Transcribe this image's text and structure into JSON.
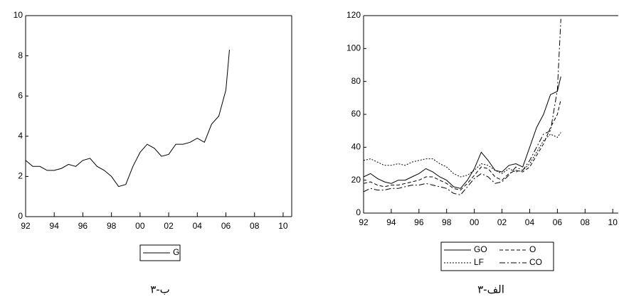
{
  "chart_data": [
    {
      "type": "line",
      "caption": "۳-ب",
      "legend": "bottom",
      "x": [
        1992,
        1992.5,
        1993,
        1993.5,
        1994,
        1994.5,
        1995,
        1995.5,
        1996,
        1996.5,
        1997,
        1997.5,
        1998,
        1998.5,
        1999,
        1999.5,
        2000,
        2000.5,
        2001,
        2001.5,
        2002,
        2002.5,
        2003,
        2003.5,
        2004,
        2004.5,
        2005,
        2005.5,
        2006,
        2006.25
      ],
      "series": [
        {
          "name": "G",
          "color": "#000000",
          "style": "solid",
          "values": [
            2.8,
            2.5,
            2.5,
            2.3,
            2.3,
            2.4,
            2.6,
            2.5,
            2.8,
            2.9,
            2.5,
            2.3,
            2.0,
            1.5,
            1.6,
            2.5,
            3.2,
            3.6,
            3.4,
            3.0,
            3.1,
            3.6,
            3.6,
            3.7,
            3.9,
            3.7,
            4.6,
            5.0,
            6.3,
            8.3
          ]
        }
      ],
      "xlim": [
        1992,
        2010.6
      ],
      "ylim": [
        0,
        10
      ],
      "yticks": [
        0,
        2,
        4,
        6,
        8,
        10
      ],
      "xticks": [
        {
          "value": 1992,
          "label": "92"
        },
        {
          "value": 1994,
          "label": "94"
        },
        {
          "value": 1996,
          "label": "96"
        },
        {
          "value": 1998,
          "label": "98"
        },
        {
          "value": 2000,
          "label": "00"
        },
        {
          "value": 2002,
          "label": "02"
        },
        {
          "value": 2004,
          "label": "04"
        },
        {
          "value": 2006,
          "label": "06"
        },
        {
          "value": 2008,
          "label": "08"
        },
        {
          "value": 2010,
          "label": "10"
        }
      ]
    },
    {
      "type": "line",
      "caption": "۳-الف",
      "legend": "bottom",
      "x": [
        1992,
        1992.5,
        1993,
        1993.5,
        1994,
        1994.5,
        1995,
        1995.5,
        1996,
        1996.5,
        1997,
        1997.5,
        1998,
        1998.5,
        1999,
        1999.5,
        2000,
        2000.5,
        2001,
        2001.5,
        2002,
        2002.5,
        2003,
        2003.5,
        2004,
        2004.5,
        2005,
        2005.5,
        2006,
        2006.25
      ],
      "series": [
        {
          "name": "GO",
          "color": "#000000",
          "style": "solid",
          "values": [
            22,
            24,
            21,
            19,
            18,
            20,
            20,
            22,
            24,
            27,
            25,
            22,
            20,
            16,
            15,
            20,
            27,
            37,
            32,
            26,
            25,
            29,
            30,
            28,
            40,
            52,
            60,
            72,
            74,
            83
          ]
        },
        {
          "name": "O",
          "color": "#000000",
          "style": "dashed",
          "values": [
            18,
            19,
            17,
            16,
            17,
            17,
            18,
            19,
            20,
            22,
            22,
            20,
            18,
            15,
            14,
            18,
            23,
            28,
            27,
            22,
            20,
            24,
            26,
            25,
            28,
            35,
            42,
            52,
            60,
            69
          ]
        },
        {
          "name": "LF",
          "color": "#000000",
          "style": "dotted",
          "values": [
            32,
            33,
            31,
            29,
            29,
            30,
            29,
            31,
            32,
            33,
            33,
            30,
            28,
            24,
            22,
            23,
            26,
            30,
            29,
            26,
            24,
            27,
            25,
            26,
            30,
            37,
            44,
            48,
            46,
            49
          ]
        },
        {
          "name": "CO",
          "color": "#000000",
          "style": "dashdot",
          "values": [
            13,
            15,
            14,
            14,
            15,
            15,
            16,
            17,
            17,
            18,
            17,
            16,
            15,
            12,
            11,
            16,
            21,
            24,
            22,
            18,
            19,
            23,
            28,
            26,
            32,
            40,
            48,
            50,
            75,
            118
          ]
        }
      ],
      "xlim": [
        1992,
        2010.4
      ],
      "ylim": [
        0,
        120
      ],
      "yticks": [
        0,
        20,
        40,
        60,
        80,
        100,
        120
      ],
      "xticks": [
        {
          "value": 1992,
          "label": "92"
        },
        {
          "value": 1994,
          "label": "94"
        },
        {
          "value": 1996,
          "label": "96"
        },
        {
          "value": 1998,
          "label": "98"
        },
        {
          "value": 2000,
          "label": "00"
        },
        {
          "value": 2002,
          "label": "02"
        },
        {
          "value": 2004,
          "label": "04"
        },
        {
          "value": 2006,
          "label": "06"
        },
        {
          "value": 2008,
          "label": "08"
        },
        {
          "value": 2010,
          "label": "10"
        }
      ]
    }
  ]
}
